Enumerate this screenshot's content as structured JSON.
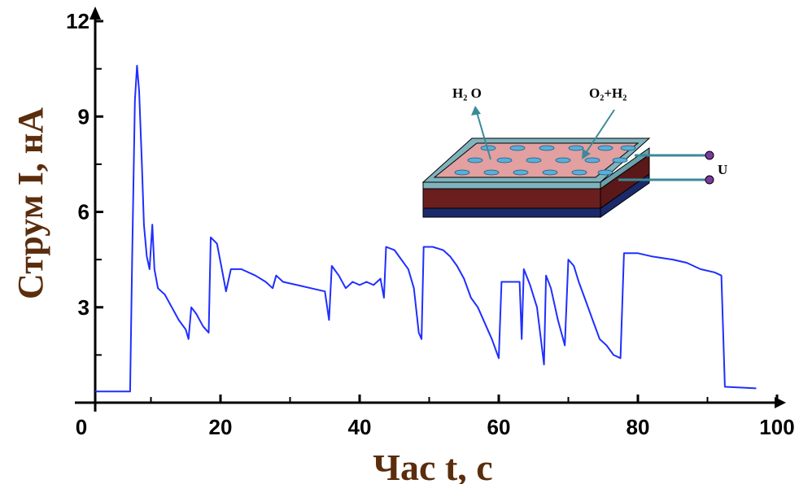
{
  "chart_data": {
    "type": "line",
    "xlabel": "Час t, с",
    "ylabel": "Струм I, нА",
    "xlim": [
      0,
      100
    ],
    "ylim": [
      0,
      12
    ],
    "x_ticks": [
      0,
      20,
      40,
      60,
      80,
      100
    ],
    "y_ticks": [
      3,
      6,
      9,
      12
    ],
    "grid": false,
    "line_color": "#1f2fff",
    "series": [
      {
        "name": "",
        "points": [
          [
            2,
            0.35
          ],
          [
            7,
            0.35
          ],
          [
            7.3,
            4.5
          ],
          [
            7.7,
            9.5
          ],
          [
            8,
            10.6
          ],
          [
            8.3,
            9.8
          ],
          [
            8.7,
            7.5
          ],
          [
            9,
            5.6
          ],
          [
            9.4,
            4.6
          ],
          [
            9.8,
            4.2
          ],
          [
            10.2,
            5.6
          ],
          [
            10.5,
            4.2
          ],
          [
            11,
            3.6
          ],
          [
            12,
            3.4
          ],
          [
            13,
            3.0
          ],
          [
            14,
            2.6
          ],
          [
            15,
            2.3
          ],
          [
            15.4,
            2.0
          ],
          [
            15.8,
            3.0
          ],
          [
            16.5,
            2.8
          ],
          [
            17.5,
            2.4
          ],
          [
            18.3,
            2.2
          ],
          [
            18.6,
            5.2
          ],
          [
            19.5,
            5.0
          ],
          [
            20.2,
            4.2
          ],
          [
            20.8,
            3.5
          ],
          [
            21.5,
            4.2
          ],
          [
            23,
            4.2
          ],
          [
            25,
            4.0
          ],
          [
            26.5,
            3.8
          ],
          [
            27.5,
            3.6
          ],
          [
            28,
            4.0
          ],
          [
            29,
            3.8
          ],
          [
            31,
            3.7
          ],
          [
            33,
            3.6
          ],
          [
            35,
            3.5
          ],
          [
            35.6,
            2.6
          ],
          [
            36,
            4.3
          ],
          [
            37,
            4.0
          ],
          [
            38,
            3.6
          ],
          [
            39,
            3.8
          ],
          [
            40,
            3.7
          ],
          [
            41,
            3.8
          ],
          [
            42,
            3.7
          ],
          [
            43,
            3.9
          ],
          [
            43.5,
            3.3
          ],
          [
            43.8,
            4.9
          ],
          [
            45,
            4.8
          ],
          [
            46,
            4.5
          ],
          [
            47,
            4.2
          ],
          [
            47.8,
            3.6
          ],
          [
            48.5,
            2.2
          ],
          [
            48.9,
            2.0
          ],
          [
            49.2,
            4.9
          ],
          [
            50.5,
            4.9
          ],
          [
            52,
            4.8
          ],
          [
            53,
            4.6
          ],
          [
            54,
            4.3
          ],
          [
            55,
            3.9
          ],
          [
            56,
            3.3
          ],
          [
            57,
            3.0
          ],
          [
            58,
            2.5
          ],
          [
            59,
            2.0
          ],
          [
            60,
            1.4
          ],
          [
            60.4,
            3.8
          ],
          [
            62,
            3.8
          ],
          [
            63,
            3.8
          ],
          [
            63.3,
            2.0
          ],
          [
            63.6,
            4.2
          ],
          [
            64.5,
            3.7
          ],
          [
            65.5,
            3.0
          ],
          [
            66.5,
            1.2
          ],
          [
            66.8,
            4.0
          ],
          [
            67.5,
            3.6
          ],
          [
            68.5,
            2.6
          ],
          [
            69.5,
            1.8
          ],
          [
            70,
            4.5
          ],
          [
            70.8,
            4.3
          ],
          [
            71.5,
            3.8
          ],
          [
            72.5,
            3.2
          ],
          [
            73.5,
            2.6
          ],
          [
            74.5,
            2.0
          ],
          [
            75.5,
            1.8
          ],
          [
            76.5,
            1.5
          ],
          [
            77.5,
            1.4
          ],
          [
            78,
            4.7
          ],
          [
            80,
            4.7
          ],
          [
            82,
            4.6
          ],
          [
            85,
            4.5
          ],
          [
            87,
            4.4
          ],
          [
            89,
            4.2
          ],
          [
            91,
            4.1
          ],
          [
            92,
            4.0
          ],
          [
            92.5,
            0.5
          ],
          [
            97,
            0.45
          ]
        ]
      }
    ]
  },
  "inset": {
    "label_h2o": "H₂ O",
    "label_o2h2": "O₂+H₂",
    "label_u": "U"
  }
}
